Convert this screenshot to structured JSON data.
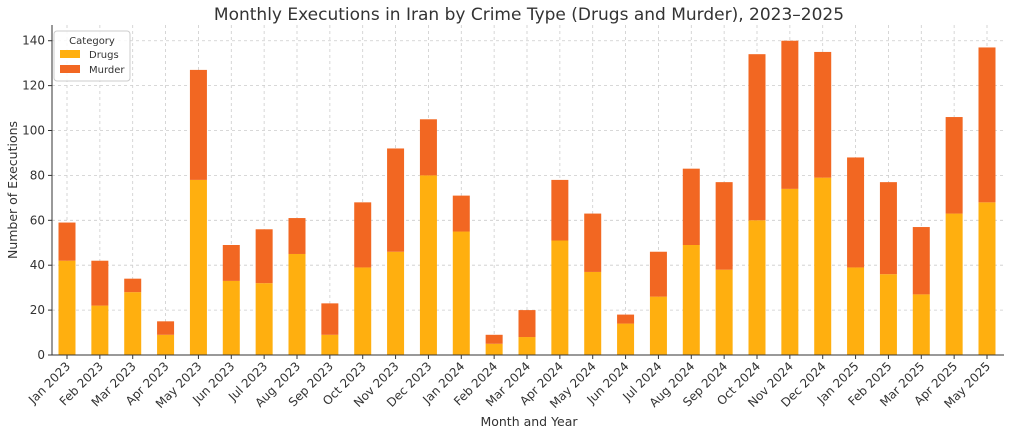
{
  "chart_data": {
    "type": "bar",
    "stacked": true,
    "title": "Monthly Executions in Iran by Crime Type (Drugs and Murder), 2023–2025",
    "xlabel": "Month and Year",
    "ylabel": "Number of Executions",
    "ylim": [
      0,
      147
    ],
    "yticks": [
      0,
      20,
      40,
      60,
      80,
      100,
      120,
      140
    ],
    "grid": true,
    "legend": {
      "title": "Category",
      "placement": "top-left"
    },
    "categories": [
      "Jan 2023",
      "Feb 2023",
      "Mar 2023",
      "Apr 2023",
      "May 2023",
      "Jun 2023",
      "Jul 2023",
      "Aug 2023",
      "Sep 2023",
      "Oct 2023",
      "Nov 2023",
      "Dec 2023",
      "Jan 2024",
      "Feb 2024",
      "Mar 2024",
      "Apr 2024",
      "May 2024",
      "Jun 2024",
      "Jul 2024",
      "Aug 2024",
      "Sep 2024",
      "Oct 2024",
      "Nov 2024",
      "Dec 2024",
      "Jan 2025",
      "Feb 2025",
      "Mar 2025",
      "Apr 2025",
      "May 2025"
    ],
    "series": [
      {
        "name": "Drugs",
        "color": "#FFAF0F",
        "values": [
          42,
          22,
          28,
          9,
          78,
          33,
          32,
          45,
          9,
          39,
          46,
          80,
          55,
          5,
          8,
          51,
          37,
          14,
          26,
          49,
          38,
          60,
          74,
          79,
          39,
          36,
          27,
          63,
          68
        ]
      },
      {
        "name": "Murder",
        "color": "#F26722",
        "values": [
          17,
          20,
          6,
          6,
          49,
          16,
          24,
          16,
          14,
          29,
          46,
          25,
          16,
          4,
          12,
          27,
          26,
          4,
          20,
          34,
          39,
          74,
          66,
          56,
          49,
          41,
          30,
          43,
          69
        ]
      }
    ]
  }
}
